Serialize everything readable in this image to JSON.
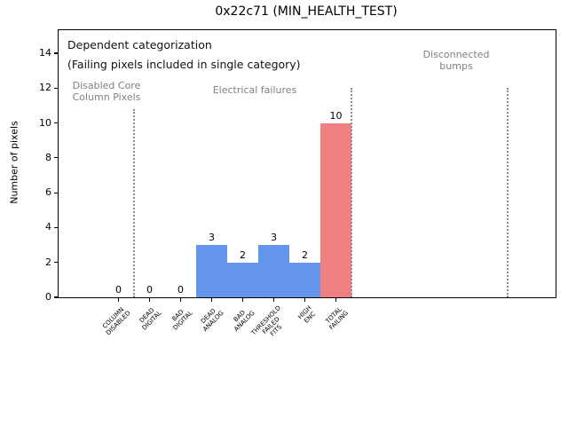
{
  "title": "0x22c71 (MIN_HEALTH_TEST)",
  "ylabel": "Number of pixels",
  "annotations": {
    "line1": "Dependent categorization",
    "line2": "(Failing pixels included in single category)"
  },
  "group_labels": [
    "Disabled Core\nColumn Pixels",
    "Electrical failures",
    "Disconnected\nbumps"
  ],
  "colors": {
    "bar_blue": "#6495ed",
    "bar_red": "#f08080",
    "muted_text": "#808080",
    "separator_gray": "#8c8c8c"
  },
  "chart_data": {
    "type": "bar",
    "title": "0x22c71 (MIN_HEALTH_TEST)",
    "xlabel": "",
    "ylabel": "Number of pixels",
    "categories": [
      "COLUMN\nDISABLED",
      "DEAD\nDIGITAL",
      "BAD\nDIGITAL",
      "DEAD\nANALOG",
      "BAD\nANALOG",
      "THRESHOLD\nFAILED\nFITS",
      "HIGH\nENC",
      "TOTAL\nFAILING"
    ],
    "values": [
      0,
      0,
      0,
      3,
      2,
      3,
      2,
      10
    ],
    "value_labels": [
      "0",
      "0",
      "0",
      "3",
      "2",
      "3",
      "2",
      "10"
    ],
    "bar_colors": [
      "#6495ed",
      "#6495ed",
      "#6495ed",
      "#6495ed",
      "#6495ed",
      "#6495ed",
      "#6495ed",
      "#f08080"
    ],
    "yticks": [
      0,
      2,
      4,
      6,
      8,
      10,
      12,
      14
    ],
    "ylim": [
      0,
      15.3
    ],
    "grid": false,
    "legend": null,
    "group_separators": [
      {
        "after_category_slot": 1,
        "top_value": 10.8
      },
      {
        "after_category_slot": 8,
        "top_value": 12
      },
      {
        "after_category_slot": 13.03,
        "top_value": 12
      }
    ]
  }
}
